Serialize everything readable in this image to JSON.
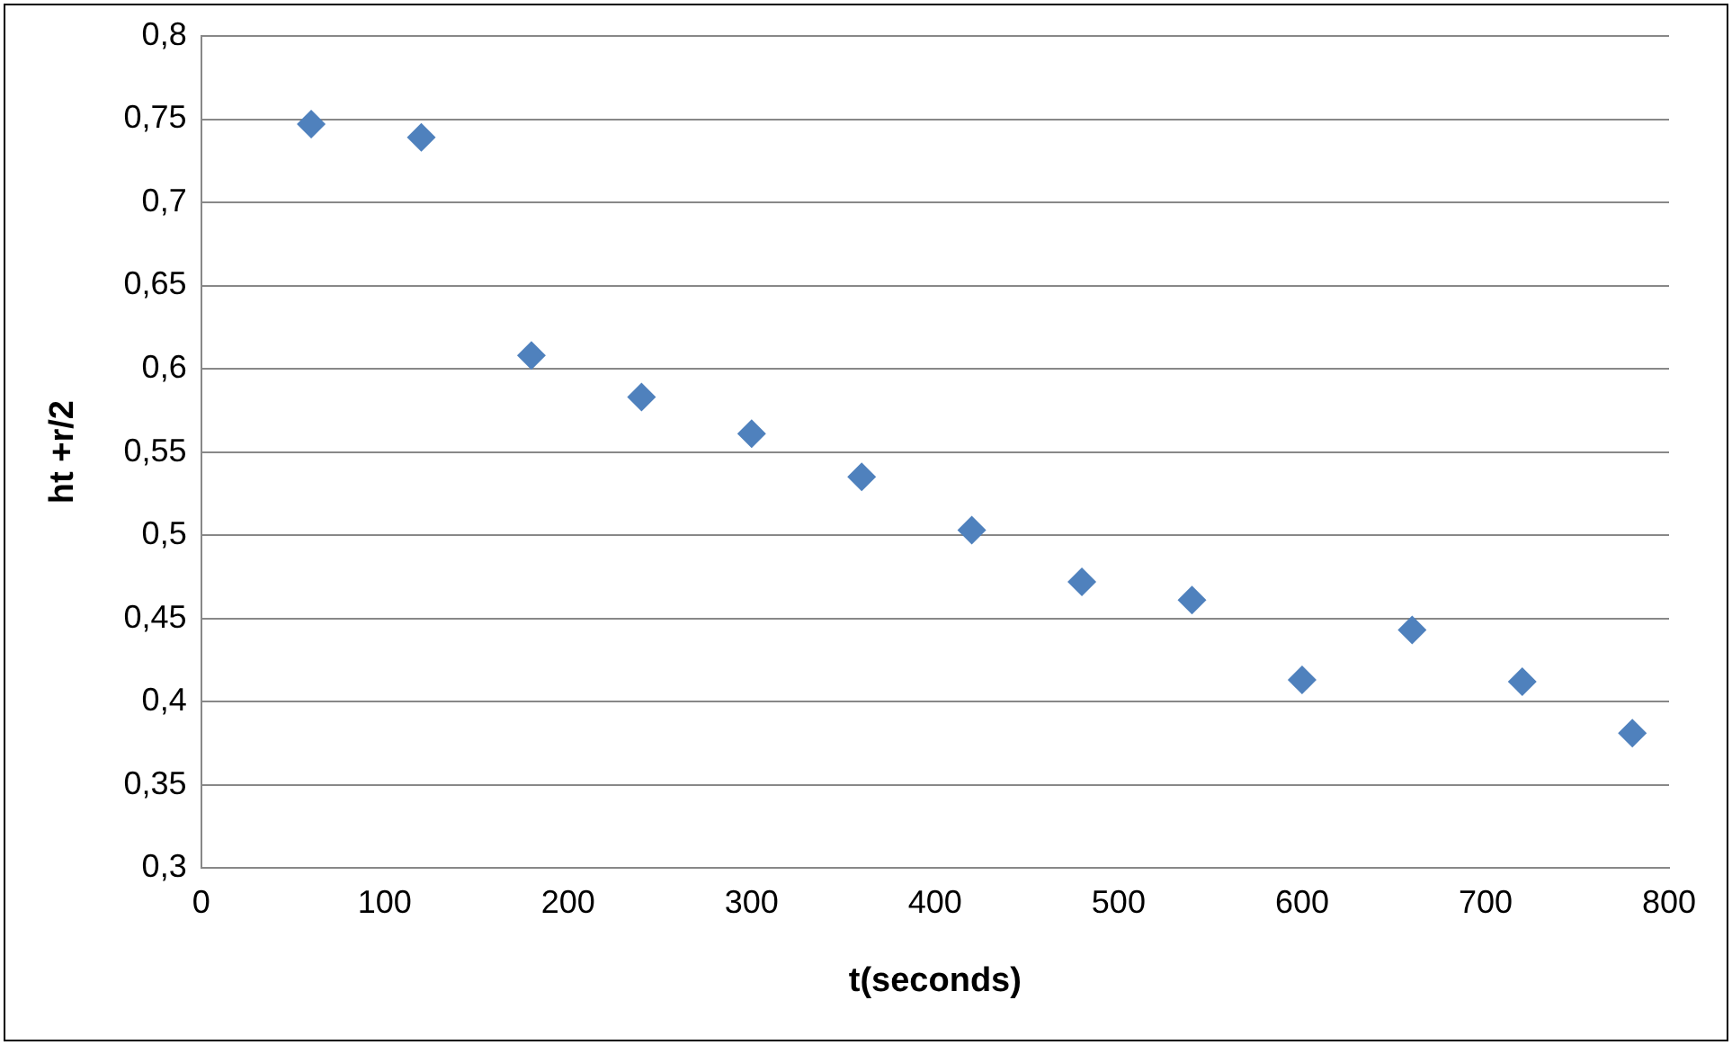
{
  "chart_data": {
    "type": "scatter",
    "xlabel": "t(seconds)",
    "ylabel": "ht +r/2",
    "x": [
      60,
      120,
      180,
      240,
      300,
      360,
      420,
      480,
      540,
      600,
      660,
      720,
      780
    ],
    "series": [
      {
        "color": "#4f81bd",
        "values": [
          0.747,
          0.739,
          0.608,
          0.583,
          0.561,
          0.535,
          0.503,
          0.472,
          0.461,
          0.413,
          0.443,
          0.412,
          0.381
        ]
      }
    ],
    "xlim": [
      0,
      800
    ],
    "xticks": [
      0,
      100,
      200,
      300,
      400,
      500,
      600,
      700,
      800
    ],
    "ylim": [
      0.3,
      0.8
    ],
    "yticks": [
      {
        "value": 0.3,
        "label": "0,3"
      },
      {
        "value": 0.35,
        "label": "0,35"
      },
      {
        "value": 0.4,
        "label": "0,4"
      },
      {
        "value": 0.45,
        "label": "0,45"
      },
      {
        "value": 0.5,
        "label": "0,5"
      },
      {
        "value": 0.55,
        "label": "0,55"
      },
      {
        "value": 0.6,
        "label": "0,6"
      },
      {
        "value": 0.65,
        "label": "0,65"
      },
      {
        "value": 0.7,
        "label": "0,7"
      },
      {
        "value": 0.75,
        "label": "0,75"
      },
      {
        "value": 0.8,
        "label": "0,8"
      }
    ],
    "grid": "y",
    "legend": false,
    "marker": "diamond"
  }
}
